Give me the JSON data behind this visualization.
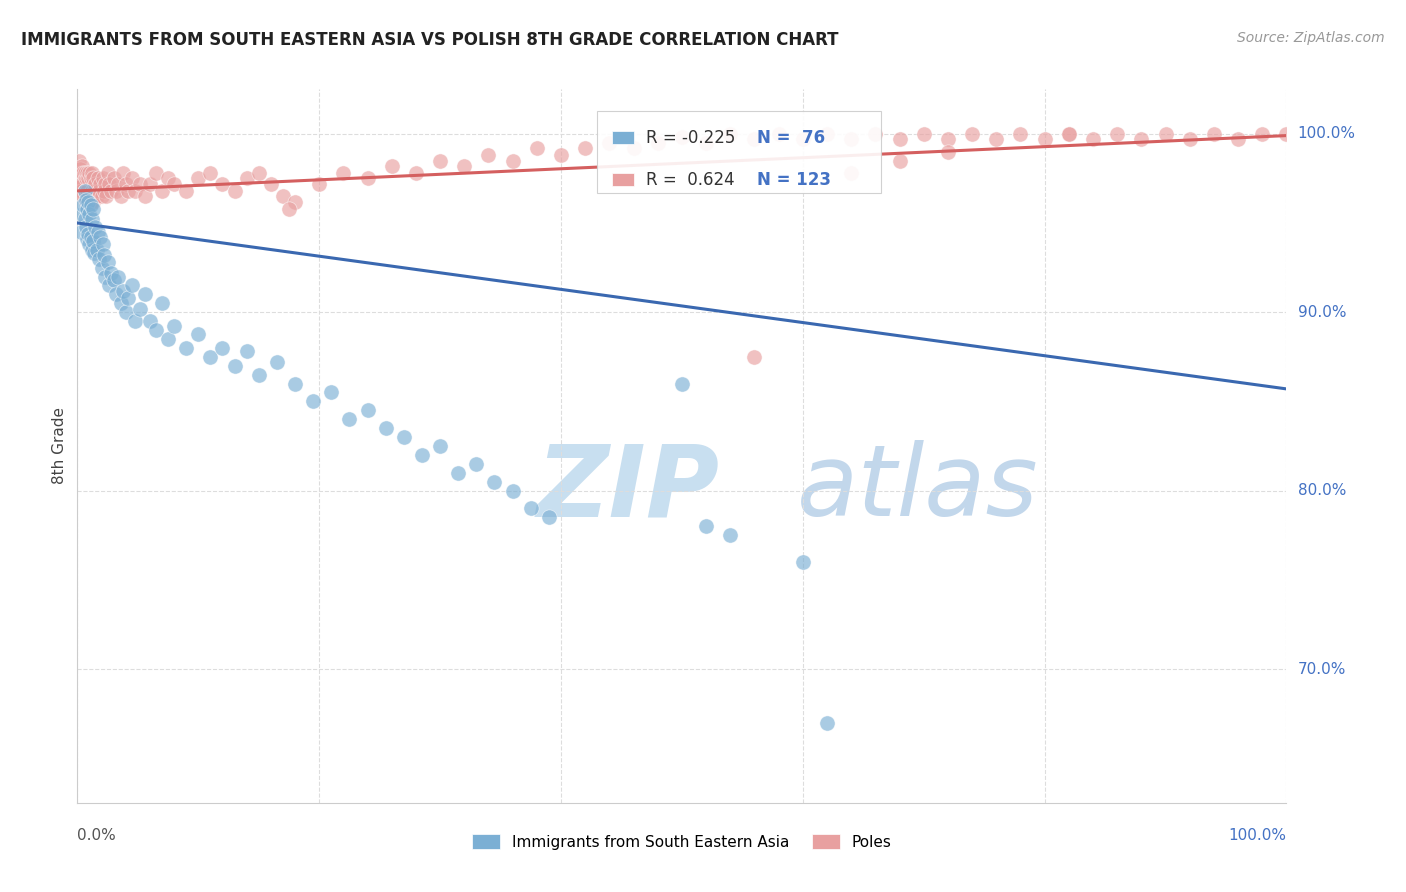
{
  "title": "IMMIGRANTS FROM SOUTH EASTERN ASIA VS POLISH 8TH GRADE CORRELATION CHART",
  "source": "Source: ZipAtlas.com",
  "ylabel": "8th Grade",
  "legend_blue_label": "Immigrants from South Eastern Asia",
  "legend_pink_label": "Poles",
  "blue_color": "#7bafd4",
  "pink_color": "#e8a0a0",
  "blue_line_color": "#3a68b0",
  "pink_line_color": "#d45f5f",
  "watermark_zip": "ZIP",
  "watermark_atlas": "atlas",
  "watermark_color": "#c8dff0",
  "blue_trend": {
    "x_start": 0.0,
    "x_end": 1.0,
    "y_start": 0.95,
    "y_end": 0.857
  },
  "pink_trend": {
    "x_start": 0.0,
    "x_end": 1.0,
    "y_start": 0.968,
    "y_end": 0.999
  },
  "xlim": [
    0.0,
    1.0
  ],
  "ylim": [
    0.625,
    1.025
  ],
  "y_tick_values": [
    1.0,
    0.9,
    0.8,
    0.7
  ],
  "y_tick_labels_right": [
    "100.0%",
    "90.0%",
    "80.0%",
    "70.0%"
  ],
  "background_color": "#ffffff",
  "grid_color": "#dddddd",
  "blue_x": [
    0.003,
    0.004,
    0.005,
    0.006,
    0.006,
    0.007,
    0.007,
    0.008,
    0.008,
    0.009,
    0.009,
    0.01,
    0.01,
    0.011,
    0.011,
    0.012,
    0.012,
    0.013,
    0.013,
    0.014,
    0.015,
    0.016,
    0.017,
    0.018,
    0.019,
    0.02,
    0.021,
    0.022,
    0.023,
    0.025,
    0.026,
    0.028,
    0.03,
    0.032,
    0.034,
    0.036,
    0.038,
    0.04,
    0.042,
    0.045,
    0.048,
    0.052,
    0.056,
    0.06,
    0.065,
    0.07,
    0.075,
    0.08,
    0.09,
    0.1,
    0.11,
    0.12,
    0.13,
    0.14,
    0.15,
    0.165,
    0.18,
    0.195,
    0.21,
    0.225,
    0.24,
    0.255,
    0.27,
    0.285,
    0.3,
    0.315,
    0.33,
    0.345,
    0.36,
    0.375,
    0.39,
    0.5,
    0.52,
    0.54,
    0.6,
    0.62
  ],
  "blue_y": [
    0.945,
    0.955,
    0.96,
    0.952,
    0.968,
    0.948,
    0.963,
    0.941,
    0.958,
    0.944,
    0.962,
    0.938,
    0.955,
    0.942,
    0.96,
    0.935,
    0.952,
    0.94,
    0.958,
    0.933,
    0.948,
    0.935,
    0.945,
    0.93,
    0.942,
    0.925,
    0.938,
    0.932,
    0.92,
    0.928,
    0.915,
    0.922,
    0.918,
    0.91,
    0.92,
    0.905,
    0.912,
    0.9,
    0.908,
    0.915,
    0.895,
    0.902,
    0.91,
    0.895,
    0.89,
    0.905,
    0.885,
    0.892,
    0.88,
    0.888,
    0.875,
    0.88,
    0.87,
    0.878,
    0.865,
    0.872,
    0.86,
    0.85,
    0.855,
    0.84,
    0.845,
    0.835,
    0.83,
    0.82,
    0.825,
    0.81,
    0.815,
    0.805,
    0.8,
    0.79,
    0.785,
    0.86,
    0.78,
    0.775,
    0.76,
    0.67
  ],
  "pink_x": [
    0.001,
    0.001,
    0.002,
    0.002,
    0.003,
    0.003,
    0.004,
    0.004,
    0.005,
    0.005,
    0.006,
    0.006,
    0.007,
    0.007,
    0.008,
    0.008,
    0.009,
    0.009,
    0.01,
    0.01,
    0.011,
    0.011,
    0.012,
    0.012,
    0.013,
    0.013,
    0.014,
    0.015,
    0.016,
    0.017,
    0.018,
    0.019,
    0.02,
    0.021,
    0.022,
    0.023,
    0.024,
    0.025,
    0.026,
    0.028,
    0.03,
    0.032,
    0.034,
    0.036,
    0.038,
    0.04,
    0.042,
    0.045,
    0.048,
    0.052,
    0.056,
    0.06,
    0.065,
    0.07,
    0.075,
    0.08,
    0.09,
    0.1,
    0.11,
    0.12,
    0.13,
    0.14,
    0.15,
    0.16,
    0.17,
    0.18,
    0.2,
    0.22,
    0.24,
    0.26,
    0.28,
    0.3,
    0.32,
    0.34,
    0.36,
    0.38,
    0.4,
    0.42,
    0.44,
    0.46,
    0.48,
    0.5,
    0.52,
    0.54,
    0.56,
    0.58,
    0.6,
    0.62,
    0.64,
    0.66,
    0.68,
    0.7,
    0.72,
    0.74,
    0.76,
    0.78,
    0.8,
    0.82,
    0.84,
    0.86,
    0.88,
    0.9,
    0.92,
    0.94,
    0.96,
    0.98,
    1.0,
    0.82,
    0.175,
    0.56,
    0.64,
    0.68,
    0.72
  ],
  "pink_y": [
    0.975,
    0.985,
    0.97,
    0.98,
    0.968,
    0.978,
    0.972,
    0.982,
    0.965,
    0.978,
    0.968,
    0.978,
    0.962,
    0.975,
    0.968,
    0.978,
    0.962,
    0.975,
    0.965,
    0.978,
    0.962,
    0.975,
    0.968,
    0.978,
    0.962,
    0.975,
    0.968,
    0.972,
    0.965,
    0.975,
    0.968,
    0.972,
    0.965,
    0.975,
    0.968,
    0.972,
    0.965,
    0.978,
    0.972,
    0.968,
    0.975,
    0.968,
    0.972,
    0.965,
    0.978,
    0.972,
    0.968,
    0.975,
    0.968,
    0.972,
    0.965,
    0.972,
    0.978,
    0.968,
    0.975,
    0.972,
    0.968,
    0.975,
    0.978,
    0.972,
    0.968,
    0.975,
    0.978,
    0.972,
    0.965,
    0.962,
    0.972,
    0.978,
    0.975,
    0.982,
    0.978,
    0.985,
    0.982,
    0.988,
    0.985,
    0.992,
    0.988,
    0.992,
    0.995,
    0.992,
    0.995,
    0.998,
    0.995,
    1.0,
    0.997,
    1.0,
    0.997,
    1.0,
    0.997,
    1.0,
    0.997,
    1.0,
    0.997,
    1.0,
    0.997,
    1.0,
    0.997,
    1.0,
    0.997,
    1.0,
    0.997,
    1.0,
    0.997,
    1.0,
    0.997,
    1.0,
    1.0,
    1.0,
    0.958,
    0.875,
    0.978,
    0.985,
    0.99
  ]
}
